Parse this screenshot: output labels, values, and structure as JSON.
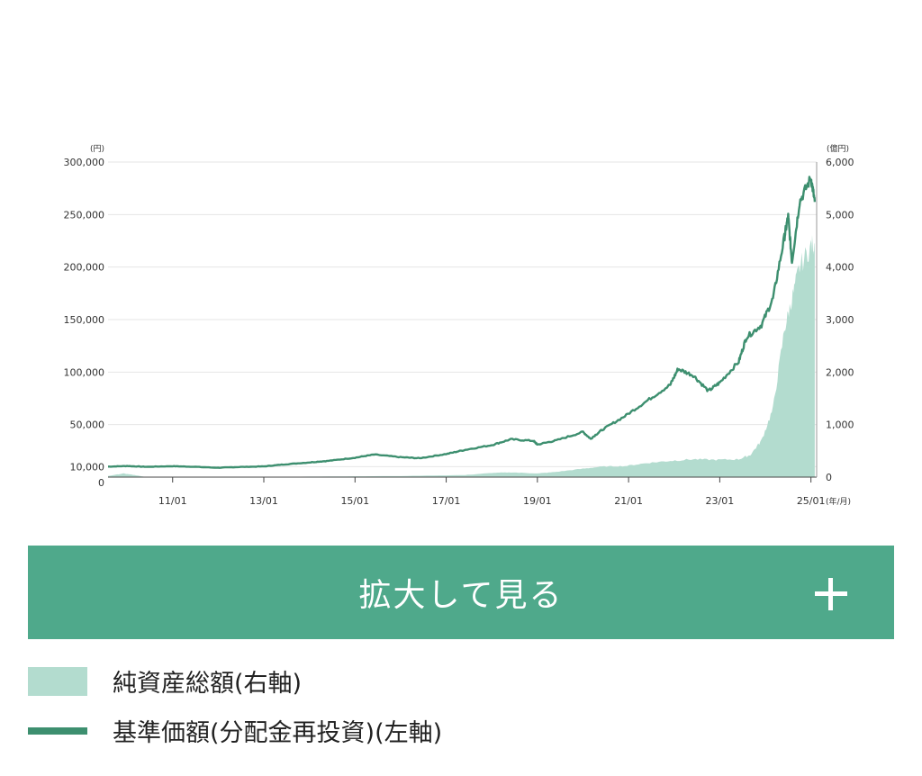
{
  "chart_data": {
    "type": "line",
    "x_tick_labels": [
      "11/01",
      "13/01",
      "15/01",
      "17/01",
      "19/01",
      "21/01",
      "23/01",
      "25/01"
    ],
    "x_unit": "(年/月)",
    "left_axis": {
      "unit": "(円)",
      "ylim": [
        0,
        300000
      ],
      "tick_labels": [
        "0",
        "10,000",
        "50,000",
        "100,000",
        "150,000",
        "200,000",
        "250,000",
        "300,000"
      ],
      "tick_values": [
        0,
        10000,
        50000,
        100000,
        150000,
        200000,
        250000,
        300000
      ]
    },
    "right_axis": {
      "unit": "(億円)",
      "ylim": [
        0,
        6000
      ],
      "tick_labels": [
        "0",
        "1,000",
        "2,000",
        "3,000",
        "4,000",
        "5,000",
        "6,000"
      ],
      "tick_values": [
        0,
        1000,
        2000,
        3000,
        4000,
        5000,
        6000
      ]
    },
    "grid": true,
    "series": [
      {
        "name": "基準価額(分配金再投資)(左軸)",
        "axis": "left",
        "kind": "line",
        "color": "#3d8f6f",
        "points": [
          [
            "2009-08",
            10000
          ],
          [
            "2010-01",
            10600
          ],
          [
            "2010-06",
            9800
          ],
          [
            "2011-01",
            10400
          ],
          [
            "2011-06",
            9900
          ],
          [
            "2012-01",
            8900
          ],
          [
            "2012-06",
            9600
          ],
          [
            "2013-01",
            10200
          ],
          [
            "2013-06",
            12000
          ],
          [
            "2014-01",
            14000
          ],
          [
            "2014-06",
            15500
          ],
          [
            "2015-01",
            18500
          ],
          [
            "2015-06",
            21500
          ],
          [
            "2016-01",
            19000
          ],
          [
            "2016-06",
            18000
          ],
          [
            "2017-01",
            22000
          ],
          [
            "2017-06",
            26000
          ],
          [
            "2018-01",
            30500
          ],
          [
            "2018-06",
            36000
          ],
          [
            "2018-12",
            34500
          ],
          [
            "2019-01",
            31000
          ],
          [
            "2019-06",
            35000
          ],
          [
            "2020-01",
            43000
          ],
          [
            "2020-03",
            36500
          ],
          [
            "2020-06",
            45000
          ],
          [
            "2020-12",
            58000
          ],
          [
            "2021-06",
            73000
          ],
          [
            "2021-12",
            88000
          ],
          [
            "2022-02",
            103000
          ],
          [
            "2022-06",
            97000
          ],
          [
            "2022-10",
            82000
          ],
          [
            "2023-01",
            90000
          ],
          [
            "2023-06",
            110000
          ],
          [
            "2023-08",
            133000
          ],
          [
            "2023-12",
            145000
          ],
          [
            "2024-03",
            170000
          ],
          [
            "2024-06",
            228000
          ],
          [
            "2024-07",
            248000
          ],
          [
            "2024-08",
            205000
          ],
          [
            "2024-10",
            262000
          ],
          [
            "2025-01",
            285000
          ],
          [
            "2025-02",
            262000
          ]
        ]
      },
      {
        "name": "純資産総額(右軸)",
        "axis": "right",
        "kind": "area",
        "color": "#b3dccf",
        "points": [
          [
            "2009-08",
            20
          ],
          [
            "2009-12",
            70
          ],
          [
            "2010-03",
            40
          ],
          [
            "2010-06",
            0
          ],
          [
            "2012-01",
            5
          ],
          [
            "2014-01",
            10
          ],
          [
            "2016-01",
            20
          ],
          [
            "2017-06",
            40
          ],
          [
            "2018-01",
            80
          ],
          [
            "2018-06",
            90
          ],
          [
            "2019-01",
            70
          ],
          [
            "2019-06",
            100
          ],
          [
            "2020-01",
            160
          ],
          [
            "2020-06",
            200
          ],
          [
            "2020-12",
            210
          ],
          [
            "2021-06",
            270
          ],
          [
            "2021-12",
            310
          ],
          [
            "2022-06",
            340
          ],
          [
            "2022-12",
            330
          ],
          [
            "2023-06",
            340
          ],
          [
            "2023-09",
            420
          ],
          [
            "2023-12",
            700
          ],
          [
            "2024-03",
            1300
          ],
          [
            "2024-06",
            2800
          ],
          [
            "2024-08",
            3400
          ],
          [
            "2024-10",
            4000
          ],
          [
            "2025-01",
            4400
          ],
          [
            "2025-02",
            4450
          ]
        ]
      }
    ]
  },
  "expand_button": {
    "label": "拡大して見る"
  },
  "legend": {
    "area_label": "純資産総額(右軸)",
    "line_label": "基準価額(分配金再投資)(左軸)"
  }
}
